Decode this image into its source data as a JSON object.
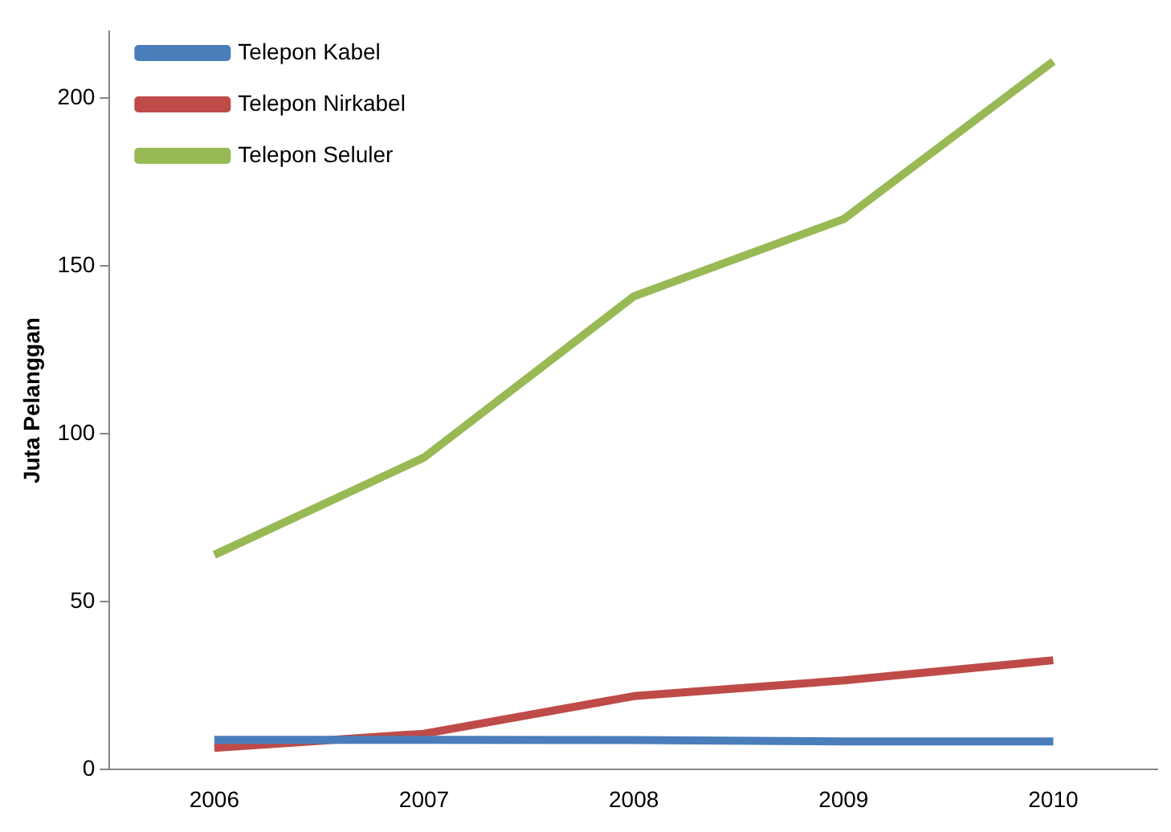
{
  "chart_data": {
    "type": "line",
    "ylabel": "Juta Pelanggan",
    "categories": [
      "2006",
      "2007",
      "2008",
      "2009",
      "2010"
    ],
    "series": [
      {
        "name": "Telepon Kabel",
        "color": "#4a7ebb",
        "values": [
          8.9,
          8.9,
          8.8,
          8.4,
          8.4
        ]
      },
      {
        "name": "Telepon Nirkabel",
        "color": "#be4b48",
        "values": [
          6.5,
          10.7,
          21.9,
          26.6,
          32.6
        ]
      },
      {
        "name": "Telepon Seluler",
        "color": "#98b954",
        "values": [
          64,
          93,
          141,
          164,
          211
        ]
      }
    ],
    "ylim": [
      0,
      220
    ],
    "yticks": [
      0,
      50,
      100,
      150,
      200
    ],
    "grid": false,
    "legend": "top left",
    "marker": "none",
    "line_style": "solid"
  }
}
